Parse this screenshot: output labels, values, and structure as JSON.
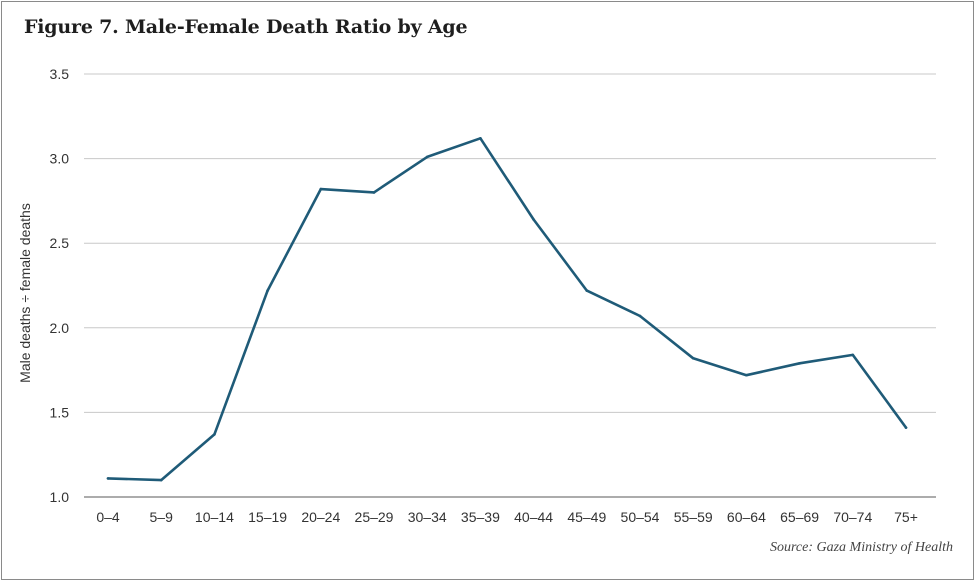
{
  "chart_data": {
    "type": "line",
    "title": "Figure 7. Male-Female Death Ratio by Age",
    "ylabel": "Male deaths ÷ female deaths",
    "xlabel": "",
    "source": "Source: Gaza Ministry of Health",
    "categories": [
      "0–4",
      "5–9",
      "10–14",
      "15–19",
      "20–24",
      "25–29",
      "30–34",
      "35–39",
      "40–44",
      "45–49",
      "50–54",
      "55–59",
      "60–64",
      "65–69",
      "70–74",
      "75+"
    ],
    "series": [
      {
        "values": [
          1.11,
          1.1,
          1.37,
          2.22,
          2.82,
          2.8,
          3.01,
          3.12,
          2.64,
          2.22,
          2.07,
          1.82,
          1.72,
          1.79,
          1.84,
          1.41
        ]
      }
    ],
    "ylim": [
      1.0,
      3.5
    ],
    "yticks": [
      "1.0",
      "1.5",
      "2.0",
      "2.5",
      "3.0",
      "3.5"
    ],
    "ytick_values": [
      1.0,
      1.5,
      2.0,
      2.5,
      3.0,
      3.5
    ],
    "grid": true,
    "legend": "none",
    "line_color": "#1f5b78",
    "grid_color": "#c8c8c8",
    "axis_color": "#7a7a7a"
  }
}
